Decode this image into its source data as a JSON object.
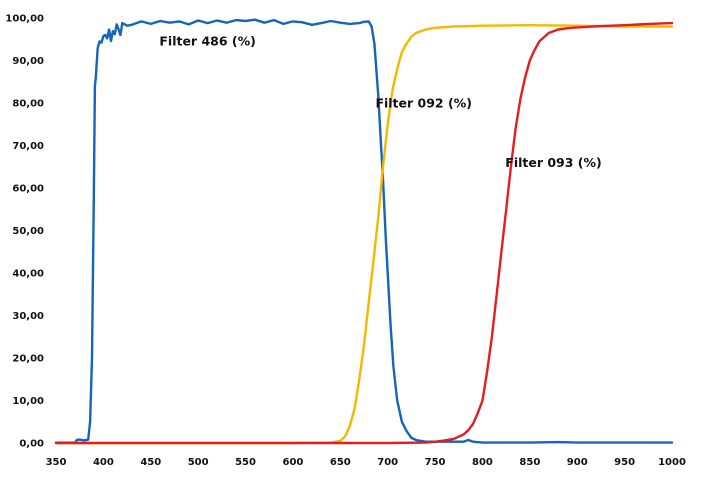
{
  "chart_data": {
    "type": "line",
    "title": "",
    "xlabel": "",
    "ylabel": "",
    "xlim": [
      350,
      1000
    ],
    "ylim": [
      0,
      100
    ],
    "grid": false,
    "legend": "none (inline annotations)",
    "x_ticks": [
      "350",
      "400",
      "450",
      "500",
      "550",
      "600",
      "650",
      "700",
      "750",
      "800",
      "850",
      "900",
      "950",
      "1000"
    ],
    "y_ticks": [
      "0,00",
      "10,00",
      "20,00",
      "30,00",
      "40,00",
      "50,00",
      "60,00",
      "70,00",
      "80,00",
      "90,00",
      "100,00"
    ],
    "series": [
      {
        "name": "Filter 486 (%)",
        "color": "#1565b8",
        "x": [
          350,
          370,
          372,
          375,
          380,
          384,
          386,
          388,
          390,
          391,
          392,
          394,
          396,
          398,
          400,
          402,
          404,
          406,
          408,
          410,
          412,
          414,
          416,
          418,
          420,
          425,
          430,
          440,
          450,
          460,
          470,
          480,
          490,
          500,
          510,
          520,
          530,
          540,
          550,
          560,
          570,
          580,
          590,
          600,
          610,
          620,
          630,
          640,
          650,
          660,
          670,
          675,
          680,
          683,
          686,
          688,
          690,
          692,
          695,
          698,
          700,
          703,
          706,
          710,
          715,
          720,
          725,
          730,
          740,
          760,
          780,
          785,
          790,
          800,
          850,
          880,
          900,
          950,
          1000
        ],
        "y": [
          0.1,
          0.1,
          0.7,
          0.8,
          0.6,
          0.8,
          5,
          20,
          60,
          84,
          86,
          93,
          94.5,
          94.2,
          95.8,
          96,
          95.2,
          97.3,
          94.6,
          96.9,
          96.2,
          98.5,
          97.4,
          96.0,
          98.8,
          98.2,
          98.4,
          99.2,
          98.6,
          99.3,
          98.9,
          99.2,
          98.5,
          99.4,
          98.8,
          99.4,
          98.9,
          99.5,
          99.3,
          99.6,
          98.9,
          99.5,
          98.6,
          99.2,
          99.0,
          98.4,
          98.8,
          99.3,
          98.9,
          98.6,
          98.8,
          99.1,
          99.2,
          98.0,
          94,
          88,
          82,
          74,
          62,
          48,
          40,
          28,
          18,
          10,
          5,
          2.8,
          1.2,
          0.7,
          0.3,
          0.3,
          0.3,
          0.7,
          0.3,
          0.1,
          0.1,
          0.2,
          0.1,
          0.1,
          0.1
        ]
      },
      {
        "name": "Filter 092 (%)",
        "color": "#f5b800",
        "x": [
          350,
          600,
          640,
          650,
          655,
          660,
          665,
          670,
          675,
          680,
          685,
          690,
          695,
          700,
          705,
          710,
          715,
          720,
          725,
          730,
          740,
          750,
          770,
          800,
          850,
          900,
          950,
          1000
        ],
        "y": [
          0,
          0,
          0.1,
          0.5,
          1.5,
          4,
          8,
          15,
          23,
          33,
          43,
          53,
          65,
          75,
          83,
          88,
          92,
          94,
          95.6,
          96.5,
          97.3,
          97.7,
          98.0,
          98.2,
          98.3,
          98.2,
          98.0,
          98.0
        ]
      },
      {
        "name": "Filter 093 (%)",
        "color": "#e41e1e",
        "x": [
          350,
          700,
          740,
          750,
          760,
          770,
          780,
          785,
          790,
          795,
          800,
          805,
          810,
          815,
          820,
          825,
          830,
          835,
          840,
          845,
          850,
          855,
          860,
          870,
          880,
          890,
          900,
          925,
          950,
          975,
          1000
        ],
        "y": [
          0,
          0,
          0.1,
          0.3,
          0.6,
          1,
          2,
          3,
          4.5,
          7,
          10,
          17,
          25,
          35,
          45,
          55,
          65,
          74,
          81,
          86,
          90,
          92.5,
          94.5,
          96.5,
          97.3,
          97.6,
          97.8,
          98.1,
          98.3,
          98.6,
          98.8
        ]
      }
    ],
    "annotations": [
      {
        "text": "Filter 486 (%)",
        "x": 510,
        "y": 93.5
      },
      {
        "text": "Filter 092 (%)",
        "x": 738,
        "y": 79
      },
      {
        "text": "Filter 093 (%)",
        "x": 875,
        "y": 65
      }
    ]
  },
  "labels": {
    "filter_486": "Filter 486 (%)",
    "filter_092": "Filter 092 (%)",
    "filter_093": "Filter 093 (%)"
  }
}
